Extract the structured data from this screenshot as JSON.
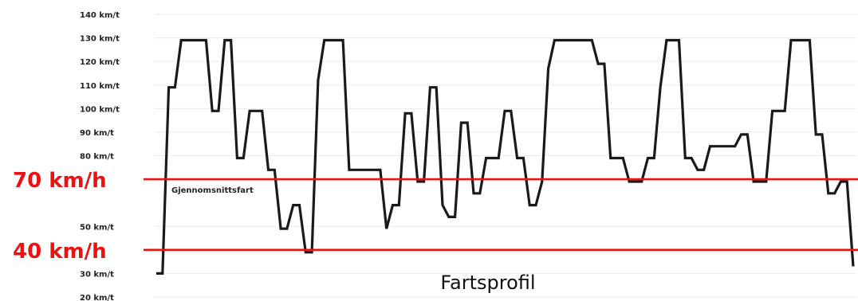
{
  "chart_data": {
    "type": "line",
    "title": "Fartsprofil",
    "xlabel": "",
    "ylabel": "",
    "y_ticks": [
      {
        "value": 140,
        "label": "140 km/t"
      },
      {
        "value": 130,
        "label": "130 km/t"
      },
      {
        "value": 120,
        "label": "120 km/t"
      },
      {
        "value": 110,
        "label": "110 km/t"
      },
      {
        "value": 100,
        "label": "100 km/t"
      },
      {
        "value": 90,
        "label": "90 km/t"
      },
      {
        "value": 80,
        "label": "80 km/t"
      },
      {
        "value": 50,
        "label": "50 km/t"
      },
      {
        "value": 30,
        "label": "30 km/t"
      },
      {
        "value": 20,
        "label": "20 km/t"
      }
    ],
    "ylim": [
      20,
      140
    ],
    "grid": true,
    "legend": "none",
    "series": [
      {
        "values": [
          30,
          30,
          109,
          109,
          129,
          129,
          129,
          129,
          129,
          99,
          99,
          129,
          129,
          79,
          79,
          99,
          99,
          99,
          74,
          74,
          49,
          49,
          59,
          59,
          39,
          39,
          112,
          129,
          129,
          129,
          129,
          74,
          74,
          74,
          74,
          74,
          74,
          49,
          59,
          59,
          98,
          98,
          69,
          69,
          109,
          109,
          59,
          54,
          54,
          94,
          94,
          64,
          64,
          79,
          79,
          79,
          99,
          99,
          79,
          79,
          59,
          59,
          69,
          117,
          129,
          129,
          129,
          129,
          129,
          129,
          129,
          119,
          119,
          79,
          79,
          79,
          69,
          69,
          69,
          79,
          79,
          109,
          129,
          129,
          129,
          79,
          79,
          74,
          74,
          84,
          84,
          84,
          84,
          84,
          89,
          89,
          69,
          69,
          69,
          99,
          99,
          99,
          129,
          129,
          129,
          129,
          89,
          89,
          64,
          64,
          69,
          69,
          33
        ]
      }
    ],
    "reference_lines": [
      {
        "value": 70,
        "label": "70 km/h",
        "color": "#ee1111"
      },
      {
        "value": 40,
        "label": "40 km/h",
        "color": "#ee1111"
      }
    ],
    "annotations": [
      {
        "text": "Gjennomsnittsfart"
      }
    ]
  }
}
